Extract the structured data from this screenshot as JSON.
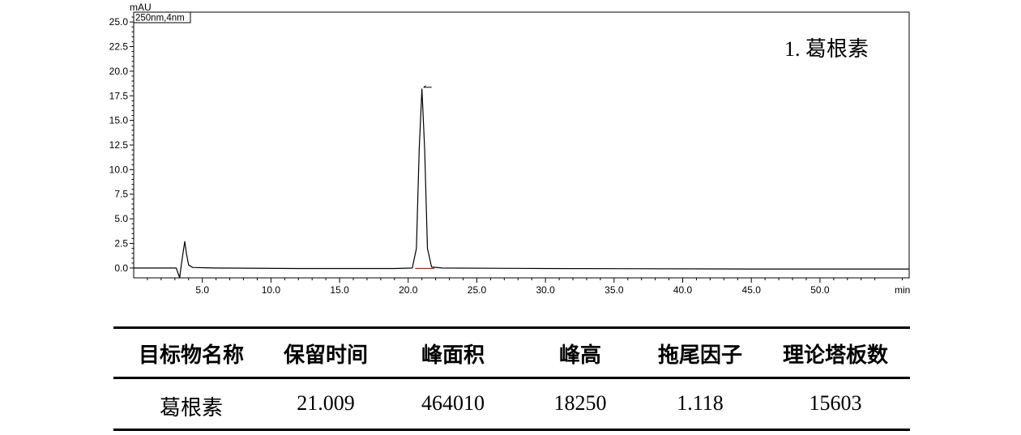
{
  "chart_data": {
    "type": "line",
    "ylabel": "mAU",
    "xlabel": "min",
    "legend": "250nm,4nm",
    "xlim": [
      0,
      56.5
    ],
    "ylim": [
      -1.0,
      26.0
    ],
    "x_ticks": [
      5.0,
      10.0,
      15.0,
      20.0,
      25.0,
      30.0,
      35.0,
      40.0,
      45.0,
      50.0
    ],
    "y_ticks": [
      0.0,
      2.5,
      5.0,
      7.5,
      10.0,
      12.5,
      15.0,
      17.5,
      20.0,
      22.5,
      25.0
    ],
    "annotation": "1.  葛根素",
    "series": [
      {
        "name": "250nm,4nm",
        "color": "#000000",
        "points": [
          [
            0.0,
            0.0
          ],
          [
            3.1,
            0.0
          ],
          [
            3.2,
            -0.4
          ],
          [
            3.35,
            -1.0
          ],
          [
            3.45,
            0.1
          ],
          [
            3.6,
            1.6
          ],
          [
            3.72,
            2.7
          ],
          [
            3.85,
            1.4
          ],
          [
            4.0,
            0.3
          ],
          [
            4.3,
            0.05
          ],
          [
            6.0,
            0.0
          ],
          [
            12.0,
            -0.05
          ],
          [
            19.0,
            -0.05
          ],
          [
            20.3,
            0.0
          ],
          [
            20.6,
            2.0
          ],
          [
            20.8,
            12.0
          ],
          [
            21.0,
            18.2
          ],
          [
            21.2,
            12.0
          ],
          [
            21.4,
            2.0
          ],
          [
            21.7,
            0.1
          ],
          [
            22.5,
            0.0
          ],
          [
            30.0,
            -0.05
          ],
          [
            45.0,
            -0.1
          ],
          [
            56.5,
            -0.1
          ]
        ]
      }
    ],
    "peak_marker": {
      "x": 21.0,
      "y": 18.2
    },
    "baseline_marker": {
      "x0": 20.5,
      "x1": 21.9,
      "y": -0.05,
      "color": "#dd0000"
    }
  },
  "table": {
    "headers": [
      "目标物名称",
      "保留时间",
      "峰面积",
      "峰高",
      "拖尾因子",
      "理论塔板数"
    ],
    "rows": [
      [
        "葛根素",
        "21.009",
        "464010",
        "18250",
        "1.118",
        "15603"
      ]
    ]
  }
}
